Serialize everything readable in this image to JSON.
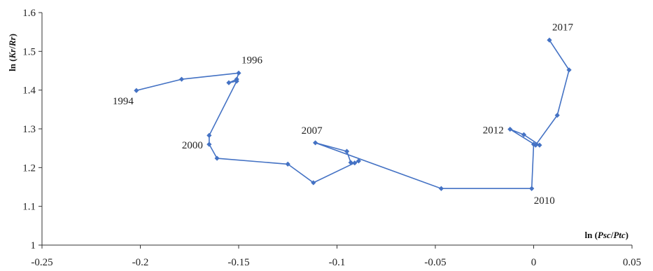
{
  "chart_data": {
    "type": "line",
    "title": "",
    "xlabel": {
      "prefix": "ln (",
      "num": "Psc",
      "sep": "/",
      "den": "Ptc",
      "suffix": ")"
    },
    "ylabel": {
      "prefix": "ln (",
      "num": "Kr",
      "sep": "/",
      "den": "Rr",
      "suffix": ")"
    },
    "xlim": [
      -0.25,
      0.05
    ],
    "ylim": [
      1.0,
      1.6
    ],
    "xticks": [
      "-0.25",
      "-0.2",
      "-0.15",
      "-0.1",
      "-0.05",
      "0",
      "0.05"
    ],
    "xtick_values": [
      -0.25,
      -0.2,
      -0.15,
      -0.1,
      -0.05,
      0,
      0.05
    ],
    "yticks": [
      "1",
      "1.1",
      "1.2",
      "1.3",
      "1.4",
      "1.5",
      "1.6"
    ],
    "ytick_values": [
      1.0,
      1.1,
      1.2,
      1.3,
      1.4,
      1.5,
      1.6
    ],
    "grid": false,
    "legend": "none",
    "series_color": "#4472C4",
    "series": [
      {
        "points": [
          [
            -0.202,
            1.399
          ],
          [
            -0.179,
            1.428
          ],
          [
            -0.15,
            1.444
          ],
          [
            -0.151,
            1.428
          ],
          [
            -0.155,
            1.419
          ],
          [
            -0.151,
            1.423
          ],
          [
            -0.165,
            1.283
          ],
          [
            -0.165,
            1.26
          ],
          [
            -0.161,
            1.224
          ],
          [
            -0.125,
            1.209
          ],
          [
            -0.112,
            1.161
          ],
          [
            -0.089,
            1.217
          ],
          [
            -0.091,
            1.212
          ],
          [
            -0.093,
            1.213
          ],
          [
            -0.095,
            1.242
          ],
          [
            -0.111,
            1.264
          ],
          [
            -0.047,
            1.146
          ],
          [
            -0.001,
            1.146
          ],
          [
            0.0,
            1.26
          ],
          [
            0.003,
            1.258
          ],
          [
            -0.005,
            1.285
          ],
          [
            -0.012,
            1.299
          ],
          [
            0.001,
            1.258
          ],
          [
            0.012,
            1.335
          ],
          [
            0.018,
            1.452
          ],
          [
            0.008,
            1.529
          ]
        ]
      }
    ],
    "annotations": [
      {
        "text": "1994",
        "x": -0.202,
        "y": 1.399,
        "pos": "below-left"
      },
      {
        "text": "1996",
        "x": -0.15,
        "y": 1.444,
        "pos": "above-right"
      },
      {
        "text": "2000",
        "x": -0.165,
        "y": 1.26,
        "pos": "left"
      },
      {
        "text": "2007",
        "x": -0.111,
        "y": 1.264,
        "pos": "above-left"
      },
      {
        "text": "2010",
        "x": -0.001,
        "y": 1.146,
        "pos": "below-right"
      },
      {
        "text": "2012",
        "x": -0.012,
        "y": 1.299,
        "pos": "left"
      },
      {
        "text": "2017",
        "x": 0.008,
        "y": 1.529,
        "pos": "above-right"
      }
    ]
  }
}
